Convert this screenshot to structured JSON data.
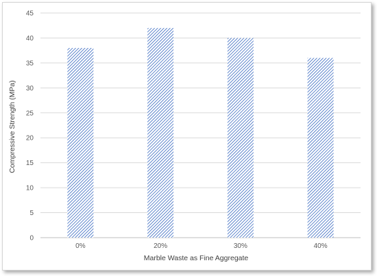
{
  "chart_data": {
    "type": "bar",
    "categories": [
      "0%",
      "20%",
      "30%",
      "40%"
    ],
    "values": [
      38,
      42,
      40,
      36
    ],
    "title": "",
    "xlabel": "Marble Waste as Fine Aggregate",
    "ylabel": "Compressive Strength (MPa)",
    "ylim": [
      0,
      45
    ],
    "yticks": [
      0,
      5,
      10,
      15,
      20,
      25,
      30,
      35,
      40,
      45
    ],
    "grid": true,
    "legend": "none",
    "bar_color": "#4472c4",
    "bar_pattern": "diagonal-hatch"
  }
}
